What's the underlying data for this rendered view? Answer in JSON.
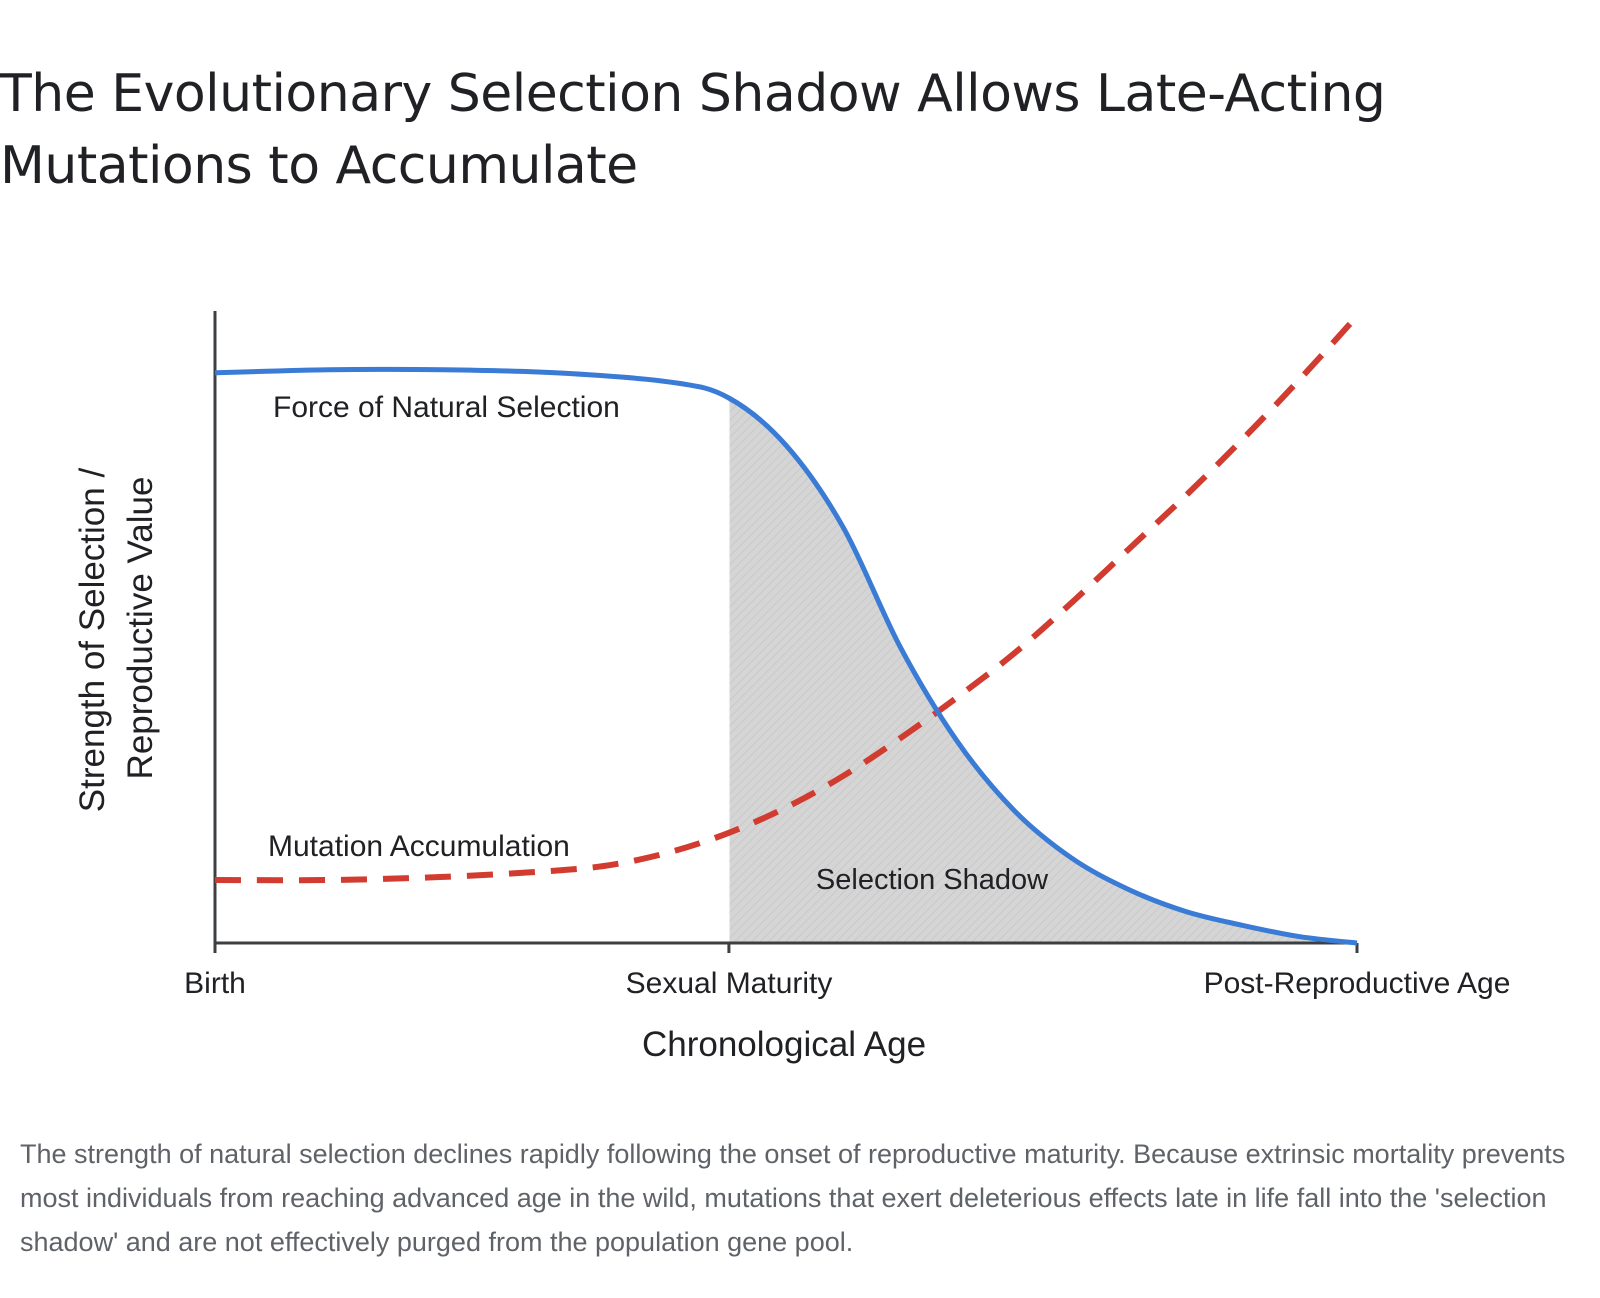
{
  "title": "The Evolutionary Selection Shadow Allows Late-Acting Mutations to Accumulate",
  "caption": "The strength of natural selection declines rapidly following the onset of reproductive maturity. Because extrinsic mortality prevents most individuals from reaching advanced age in the wild, mutations that exert deleterious effects late in life fall into the 'selection shadow' and are not effectively purged from the population gene pool.",
  "chart_data": {
    "type": "line",
    "xlabel": "Chronological Age",
    "ylabel": "Strength of Selection / Reproductive Value",
    "ylabel_lines": [
      "Strength of Selection /",
      "Reproductive Value"
    ],
    "x_ticks": [
      "Birth",
      "Sexual Maturity",
      "Post-Reproductive Age"
    ],
    "xlim": [
      0,
      1
    ],
    "ylim": [
      0,
      1
    ],
    "grid": false,
    "series": [
      {
        "name": "Force of Natural Selection",
        "style": "solid",
        "color": "#3a7bd5",
        "x": [
          0,
          0.1,
          0.2,
          0.3,
          0.4,
          0.45,
          0.5,
          0.55,
          0.6,
          0.65,
          0.7,
          0.75,
          0.8,
          0.85,
          0.9,
          0.95,
          1.0
        ],
        "y": [
          0.905,
          0.91,
          0.91,
          0.905,
          0.89,
          0.865,
          0.79,
          0.66,
          0.47,
          0.32,
          0.21,
          0.135,
          0.085,
          0.05,
          0.028,
          0.01,
          0.0
        ]
      },
      {
        "name": "Mutation Accumulation",
        "style": "dashed",
        "color": "#d23b2f",
        "x": [
          0,
          0.1,
          0.2,
          0.3,
          0.35,
          0.4,
          0.45,
          0.5,
          0.55,
          0.6,
          0.65,
          0.7,
          0.75,
          0.8,
          0.85,
          0.9,
          0.95,
          1.0
        ],
        "y": [
          0.1,
          0.1,
          0.105,
          0.115,
          0.125,
          0.145,
          0.175,
          0.215,
          0.265,
          0.325,
          0.39,
          0.46,
          0.54,
          0.625,
          0.71,
          0.8,
          0.895,
          0.995
        ]
      }
    ],
    "shaded_region": {
      "label": "Selection Shadow",
      "from_x": 0.45,
      "to_x": 1.0,
      "under_series": "Force of Natural Selection",
      "color": "#d5d5d5"
    }
  }
}
